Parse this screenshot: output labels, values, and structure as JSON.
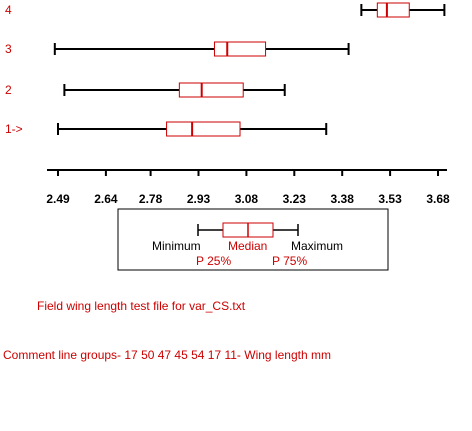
{
  "colors": {
    "box": "#cc0000",
    "whisker": "#000000",
    "label": "#cc0000",
    "axis": "#000000",
    "caption": "#cc0000"
  },
  "chart_data": {
    "type": "boxplot",
    "orientation": "horizontal",
    "xlim": [
      2.46,
      3.72
    ],
    "ticks": [
      2.49,
      2.64,
      2.78,
      2.93,
      3.08,
      3.23,
      3.38,
      3.53,
      3.68
    ],
    "tick_labels": [
      "2.49",
      "2.64",
      "2.78",
      "2.93",
      "3.08",
      "3.23",
      "3.38",
      "3.53",
      "3.68"
    ],
    "groups": [
      {
        "label": "4",
        "min": 3.44,
        "p25": 3.49,
        "median": 3.52,
        "p75": 3.59,
        "max": 3.7
      },
      {
        "label": "3",
        "min": 2.48,
        "p25": 2.98,
        "median": 3.02,
        "p75": 3.14,
        "max": 3.4
      },
      {
        "label": "2",
        "min": 2.51,
        "p25": 2.87,
        "median": 2.94,
        "p75": 3.07,
        "max": 3.2
      },
      {
        "label": "1->",
        "min": 2.49,
        "p25": 2.83,
        "median": 2.91,
        "p75": 3.06,
        "max": 3.33
      }
    ],
    "legend": {
      "minimum": "Minimum",
      "median": "Median",
      "maximum": "Maximum",
      "p25": "P 25%",
      "p75": "P 75%"
    }
  },
  "captions": {
    "file": "Field wing length test file for var_CS.txt",
    "comment": "Comment line groups- 17 50 47 45 54 17 11- Wing length mm"
  }
}
